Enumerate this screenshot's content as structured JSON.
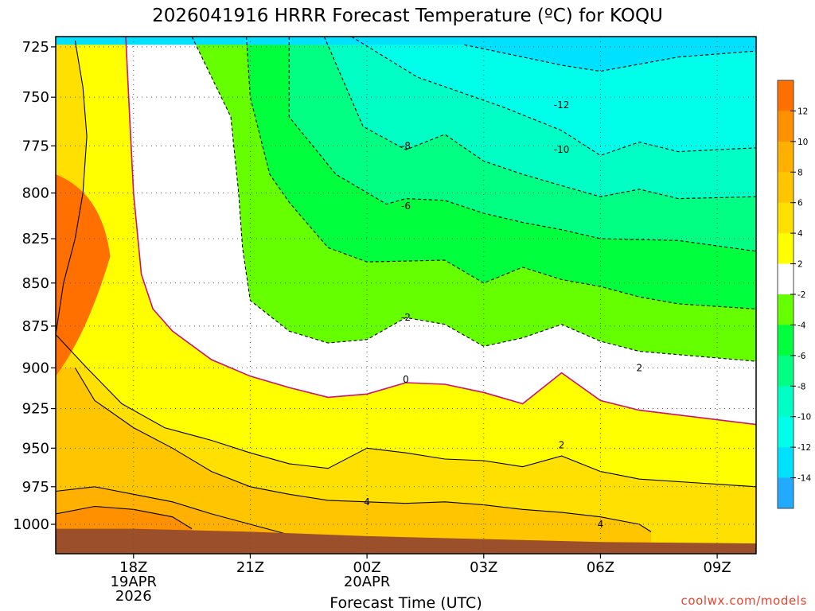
{
  "chart_data": {
    "type": "filled-contour",
    "title": "2026041916 HRRR Forecast Temperature (ºC) for KOQU",
    "xlabel": "Forecast Time (UTC)",
    "ylabel": "",
    "x_units": "hours from 18Z 19APR2026",
    "xlim": [
      -2,
      16
    ],
    "y_units": "hPa",
    "ylim": [
      1020,
      720
    ],
    "y_ticks": [
      "725",
      "750",
      "775",
      "800",
      "825",
      "850",
      "875",
      "900",
      "925",
      "950",
      "975",
      "1000"
    ],
    "x_ticks": [
      {
        "hour": 0,
        "line1": "18Z",
        "line2": "19APR",
        "line3": "2026"
      },
      {
        "hour": 3,
        "line1": "21Z",
        "line2": "",
        "line3": ""
      },
      {
        "hour": 6,
        "line1": "00Z",
        "line2": "20APR",
        "line3": ""
      },
      {
        "hour": 9,
        "line1": "03Z",
        "line2": "",
        "line3": ""
      },
      {
        "hour": 12,
        "line1": "06Z",
        "line2": "",
        "line3": ""
      },
      {
        "hour": 15,
        "line1": "09Z",
        "line2": "",
        "line3": ""
      }
    ],
    "grid": "dotted",
    "contour_interval": 2,
    "contour_levels": [
      {
        "value": -12,
        "points": [
          [
            8.5,
            724
          ],
          [
            11.0,
            734
          ],
          [
            12.0,
            737
          ],
          [
            14.0,
            730
          ],
          [
            16,
            727
          ]
        ]
      },
      {
        "value": -10,
        "points": [
          [
            5.6,
            720
          ],
          [
            7.3,
            740
          ],
          [
            9.5,
            755
          ],
          [
            11.0,
            767
          ],
          [
            12.0,
            780
          ],
          [
            13.0,
            773
          ],
          [
            14.0,
            778
          ],
          [
            16,
            776
          ]
        ]
      },
      {
        "value": -8,
        "points": [
          [
            4.9,
            720
          ],
          [
            5.9,
            765
          ],
          [
            7.0,
            777
          ],
          [
            8.0,
            769
          ],
          [
            9.0,
            783
          ],
          [
            10.0,
            790
          ],
          [
            11.0,
            796
          ],
          [
            12.0,
            802
          ],
          [
            13.0,
            798
          ],
          [
            14.0,
            803
          ],
          [
            16,
            802
          ]
        ]
      },
      {
        "value": -6,
        "points": [
          [
            4.0,
            720
          ],
          [
            4.0,
            760
          ],
          [
            5.2,
            790
          ],
          [
            6.5,
            806
          ],
          [
            7.0,
            803
          ],
          [
            8.0,
            804
          ],
          [
            9.0,
            811
          ],
          [
            10.0,
            816
          ],
          [
            11.0,
            820
          ],
          [
            12.0,
            825
          ],
          [
            14.0,
            826
          ],
          [
            16,
            832
          ]
        ]
      },
      {
        "value": -4,
        "points": [
          [
            2.9,
            720
          ],
          [
            3.0,
            750
          ],
          [
            3.5,
            790
          ],
          [
            4.0,
            805
          ],
          [
            5.0,
            830
          ],
          [
            6.0,
            838
          ],
          [
            8.0,
            837
          ],
          [
            9.0,
            850
          ],
          [
            10.0,
            841
          ],
          [
            11.0,
            848
          ],
          [
            12.0,
            852
          ],
          [
            13.0,
            858
          ],
          [
            14.0,
            862
          ],
          [
            16,
            865
          ]
        ]
      },
      {
        "value": -2,
        "points": [
          [
            1.5,
            720
          ],
          [
            2.5,
            760
          ],
          [
            2.7,
            800
          ],
          [
            2.8,
            830
          ],
          [
            3.0,
            860
          ],
          [
            4.0,
            878
          ],
          [
            5.0,
            885
          ],
          [
            6.0,
            883
          ],
          [
            7.0,
            870
          ],
          [
            8.0,
            874
          ],
          [
            9.0,
            887
          ],
          [
            10.0,
            882
          ],
          [
            11.0,
            874
          ],
          [
            12.0,
            884
          ],
          [
            13.0,
            890
          ],
          [
            16,
            896
          ]
        ]
      },
      {
        "value": 0,
        "points": [
          [
            -0.2,
            720
          ],
          [
            -0.1,
            760
          ],
          [
            0.0,
            800
          ],
          [
            0.2,
            845
          ],
          [
            0.5,
            865
          ],
          [
            1.0,
            878
          ],
          [
            2.0,
            895
          ],
          [
            3.0,
            905
          ],
          [
            4.0,
            912
          ],
          [
            5.0,
            918
          ],
          [
            6.0,
            916
          ],
          [
            7.0,
            909
          ],
          [
            8.0,
            910
          ],
          [
            9.0,
            915
          ],
          [
            10.0,
            922
          ],
          [
            11.0,
            903
          ],
          [
            12.0,
            920
          ],
          [
            13.0,
            926
          ],
          [
            16,
            935
          ]
        ]
      },
      {
        "value": 2,
        "points": [
          [
            -1.5,
            722
          ],
          [
            -1.3,
            745
          ],
          [
            -1.2,
            770
          ],
          [
            -1.3,
            800
          ],
          [
            -1.5,
            825
          ],
          [
            -1.8,
            850
          ],
          [
            -2.0,
            880
          ],
          [
            -1.2,
            900
          ],
          [
            -0.3,
            922
          ],
          [
            0.8,
            937
          ],
          [
            2.0,
            945
          ],
          [
            3.0,
            953
          ],
          [
            4.0,
            960
          ],
          [
            5.0,
            963
          ],
          [
            6.0,
            950
          ],
          [
            7.0,
            953
          ],
          [
            8.0,
            957
          ],
          [
            9.0,
            958
          ],
          [
            10.0,
            962
          ],
          [
            11.0,
            955
          ],
          [
            12.0,
            965
          ],
          [
            13.0,
            970
          ],
          [
            16,
            975
          ]
        ]
      },
      {
        "value": 4,
        "points": [
          [
            -1.5,
            900
          ],
          [
            -1.0,
            920
          ],
          [
            0.0,
            937
          ],
          [
            1.0,
            950
          ],
          [
            2.0,
            965
          ],
          [
            3.0,
            975
          ],
          [
            4.0,
            980
          ],
          [
            5.0,
            984
          ],
          [
            6.0,
            985
          ],
          [
            7.0,
            986
          ],
          [
            8.0,
            985
          ],
          [
            9.0,
            987
          ],
          [
            10.0,
            990
          ],
          [
            11.0,
            992
          ],
          [
            12.0,
            995
          ],
          [
            13.0,
            1000
          ],
          [
            13.3,
            1005
          ]
        ]
      },
      {
        "value": 6,
        "points": [
          [
            -2,
            978
          ],
          [
            -1.0,
            975
          ],
          [
            0.0,
            980
          ],
          [
            1.0,
            985
          ],
          [
            2.0,
            993
          ],
          [
            3.0,
            1000
          ],
          [
            4.0,
            1007
          ],
          [
            5.0,
            1010
          ]
        ]
      },
      {
        "value": 8,
        "points": [
          [
            -2,
            993
          ],
          [
            -1.0,
            988
          ],
          [
            0.0,
            990
          ],
          [
            1.0,
            995
          ],
          [
            1.5,
            1003
          ]
        ]
      }
    ],
    "labels": [
      {
        "text": "-12",
        "x": 11.0,
        "p": 754
      },
      {
        "text": "-10",
        "x": 11.0,
        "p": 777
      },
      {
        "text": "-8",
        "x": 7.0,
        "p": 775
      },
      {
        "text": "-6",
        "x": 7.0,
        "p": 807
      },
      {
        "text": "-2",
        "x": 7.0,
        "p": 870
      },
      {
        "text": "0",
        "x": 7.0,
        "p": 907
      },
      {
        "text": "2",
        "x": 11.0,
        "p": 948
      },
      {
        "text": "4",
        "x": 6.0,
        "p": 985
      },
      {
        "text": "4",
        "x": 12.0,
        "p": 1000
      },
      {
        "text": "2",
        "x": 13.0,
        "p": 900
      }
    ],
    "surface_pressure": [
      [
        -2,
        1003
      ],
      [
        0,
        1003
      ],
      [
        3,
        1005
      ],
      [
        6,
        1008
      ],
      [
        9,
        1010
      ],
      [
        12,
        1012
      ],
      [
        16,
        1013
      ]
    ],
    "colorbar": {
      "levels": [
        "12",
        "10",
        "8",
        "6",
        "4",
        "2",
        "-2",
        "-4",
        "-6",
        "-8",
        "-10",
        "-12",
        "-14"
      ],
      "colors": [
        "#ff7000",
        "#ff9000",
        "#ffb000",
        "#ffc600",
        "#ffe000",
        "#ffff00",
        "#ffffff",
        "#66ff00",
        "#00ff3c",
        "#00ff82",
        "#00ffc4",
        "#00ffea",
        "#00e0ff",
        "#22aaff"
      ]
    },
    "colors": {
      "frame": "#000000",
      "ground": "#9b4f2b",
      "zero_line": "#cc1177",
      "contour": "#000000"
    }
  },
  "credit": "coolwx.com/models"
}
